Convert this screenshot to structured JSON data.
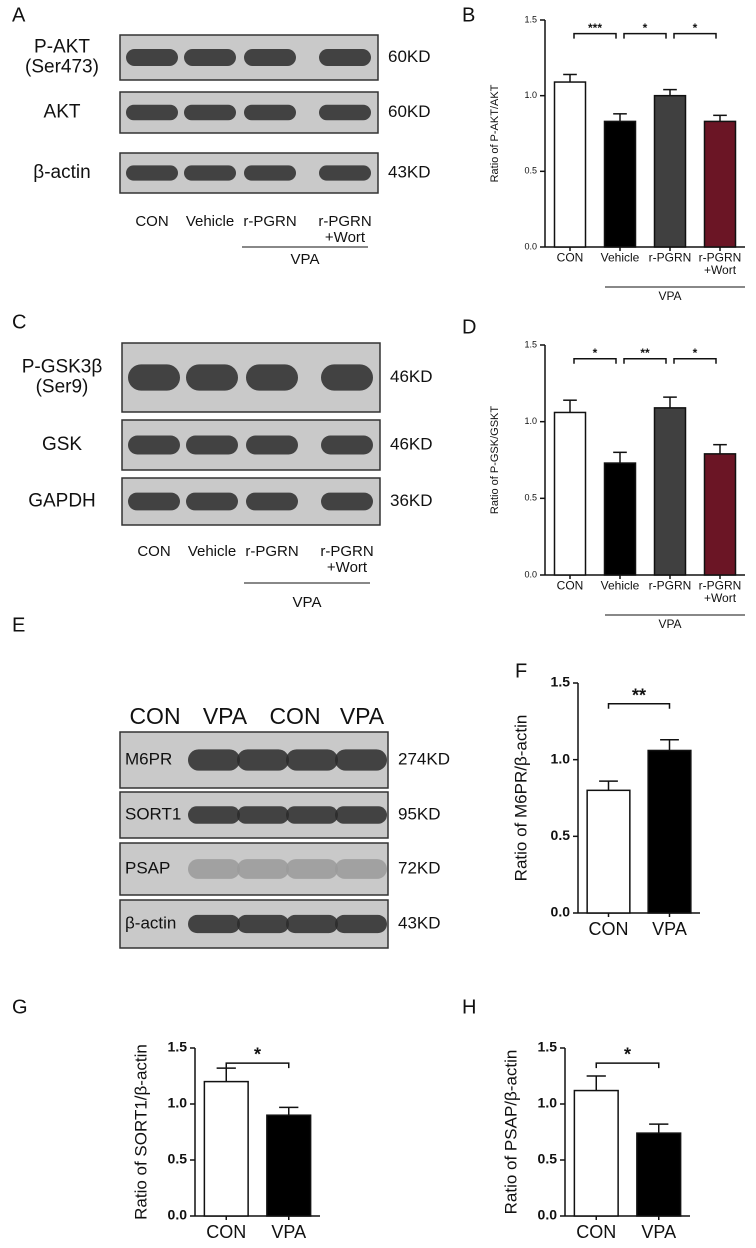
{
  "blots": [
    {
      "panel": "A",
      "rows": [
        {
          "label": "P-AKT\n(Ser473)",
          "size": "60KD"
        },
        {
          "label": "AKT",
          "size": "60KD"
        },
        {
          "label": "β-actin",
          "size": "43KD"
        }
      ],
      "lanes": [
        "CON",
        "Vehicle",
        "r-PGRN",
        "r-PGRN\n+Wort"
      ],
      "group": "VPA"
    },
    {
      "panel": "C",
      "rows": [
        {
          "label": "P-GSK3β\n(Ser9)",
          "size": "46KD"
        },
        {
          "label": "GSK",
          "size": "46KD"
        },
        {
          "label": "GAPDH",
          "size": "36KD"
        }
      ],
      "lanes": [
        "CON",
        "Vehicle",
        "r-PGRN",
        "r-PGRN\n+Wort"
      ],
      "group": "VPA"
    },
    {
      "panel": "E",
      "rows": [
        {
          "label": "M6PR",
          "size": "274KD"
        },
        {
          "label": "SORT1",
          "size": "95KD"
        },
        {
          "label": "PSAP",
          "size": "72KD"
        },
        {
          "label": "β-actin",
          "size": "43KD"
        }
      ],
      "lanes": [
        "CON",
        "VPA",
        "CON",
        "VPA"
      ]
    }
  ],
  "chart_data": [
    {
      "type": "bar",
      "panel": "B",
      "y_label": "Ratio of P-AKT/AKT",
      "categories": [
        "CON",
        "Vehicle",
        "r-PGRN",
        "r-PGRN\n+Wort"
      ],
      "values": [
        1.09,
        0.83,
        1.0,
        0.83
      ],
      "errors": [
        0.05,
        0.05,
        0.04,
        0.04
      ],
      "colors": [
        "#ffffff",
        "#000000",
        "#404040",
        "#6b1525"
      ],
      "ylim": [
        0,
        1.5
      ],
      "yticks": [
        {
          "value": 0,
          "label": "0.0"
        },
        0.5,
        {
          "value": 1,
          "label": "1.0"
        },
        1.5
      ],
      "significance": [
        {
          "between": [
            0,
            1
          ],
          "label": "***"
        },
        {
          "between": [
            1,
            2
          ],
          "label": "*"
        },
        {
          "between": [
            2,
            3
          ],
          "label": "*"
        }
      ],
      "group": {
        "label": "VPA",
        "between": [
          1,
          3
        ]
      }
    },
    {
      "type": "bar",
      "panel": "D",
      "y_label": "Ratio of P-GSK/GSKT",
      "categories": [
        "CON",
        "Vehicle",
        "r-PGRN",
        "r-PGRN\n+Wort"
      ],
      "values": [
        1.06,
        0.73,
        1.09,
        0.79
      ],
      "errors": [
        0.08,
        0.07,
        0.07,
        0.06
      ],
      "colors": [
        "#ffffff",
        "#000000",
        "#404040",
        "#6b1525"
      ],
      "ylim": [
        0,
        1.5
      ],
      "yticks": [
        {
          "value": 0,
          "label": "0.0"
        },
        0.5,
        {
          "value": 1,
          "label": "1.0"
        },
        1.5
      ],
      "significance": [
        {
          "between": [
            0,
            1
          ],
          "label": "*"
        },
        {
          "between": [
            1,
            2
          ],
          "label": "**"
        },
        {
          "between": [
            2,
            3
          ],
          "label": "*"
        }
      ],
      "group": {
        "label": "VPA",
        "between": [
          1,
          3
        ]
      }
    },
    {
      "type": "bar",
      "panel": "F",
      "y_label": "Ratio of M6PR/β-actin",
      "categories": [
        "CON",
        "VPA"
      ],
      "values": [
        0.8,
        1.06
      ],
      "errors": [
        0.06,
        0.07
      ],
      "colors": [
        "#ffffff",
        "#000000"
      ],
      "ylim": [
        0,
        1.5
      ],
      "yticks": [
        {
          "value": 0,
          "label": "0.0"
        },
        0.5,
        {
          "value": 1,
          "label": "1.0"
        },
        1.5
      ],
      "significance": [
        {
          "between": [
            0,
            1
          ],
          "label": "**"
        }
      ]
    },
    {
      "type": "bar",
      "panel": "G",
      "y_label": "Ratio of SORT1/β-actin",
      "categories": [
        "CON",
        "VPA"
      ],
      "values": [
        1.2,
        0.9
      ],
      "errors": [
        0.12,
        0.07
      ],
      "colors": [
        "#ffffff",
        "#000000"
      ],
      "ylim": [
        0,
        1.5
      ],
      "yticks": [
        {
          "value": 0,
          "label": "0.0"
        },
        0.5,
        {
          "value": 1,
          "label": "1.0"
        },
        1.5
      ],
      "significance": [
        {
          "between": [
            0,
            1
          ],
          "label": "*"
        }
      ]
    },
    {
      "type": "bar",
      "panel": "H",
      "y_label": "Ratio of PSAP/β-actin",
      "categories": [
        "CON",
        "VPA"
      ],
      "values": [
        1.12,
        0.74
      ],
      "errors": [
        0.13,
        0.08
      ],
      "colors": [
        "#ffffff",
        "#000000"
      ],
      "ylim": [
        0,
        1.5
      ],
      "yticks": [
        {
          "value": 0,
          "label": "0.0"
        },
        0.5,
        {
          "value": 1,
          "label": "1.0"
        },
        1.5
      ],
      "significance": [
        {
          "between": [
            0,
            1
          ],
          "label": "*"
        }
      ]
    }
  ]
}
